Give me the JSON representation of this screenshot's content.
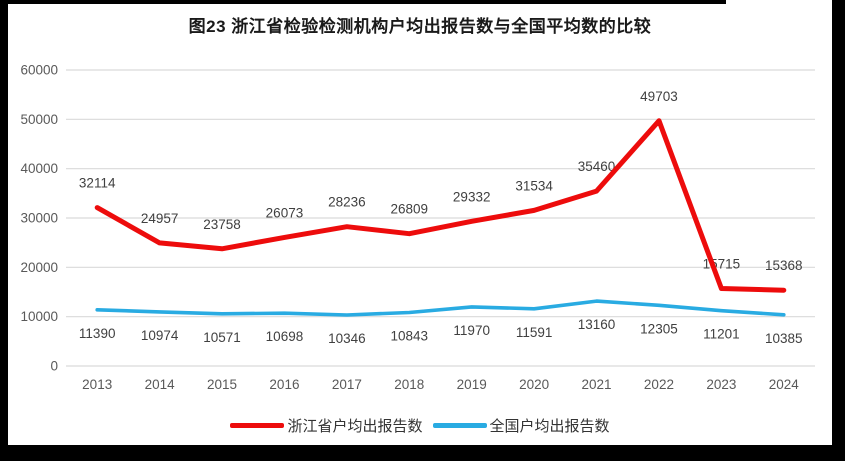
{
  "title": "图23  浙江省检验检测机构户均出报告数与全国平均数的比较",
  "colors": {
    "zhejiang_line": "#ed0c0c",
    "national_line": "#29abe2",
    "gridline": "#d9d9d9",
    "axis_label": "#595959",
    "data_label": "#404040",
    "title_text": "#1a1a1a",
    "frame": "#000000"
  },
  "chart_data": {
    "type": "line",
    "title": "图23  浙江省检验检测机构户均出报告数与全国平均数的比较",
    "categories": [
      "2013",
      "2014",
      "2015",
      "2016",
      "2017",
      "2018",
      "2019",
      "2020",
      "2021",
      "2022",
      "2023",
      "2024"
    ],
    "series": [
      {
        "name": "浙江省户均出报告数",
        "color": "#ed0c0c",
        "values": [
          32114,
          24957,
          23758,
          26073,
          28236,
          26809,
          29332,
          31534,
          35460,
          49703,
          15715,
          15368
        ],
        "label_position": "above"
      },
      {
        "name": "全国户均出报告数",
        "color": "#29abe2",
        "values": [
          11390,
          10974,
          10571,
          10698,
          10346,
          10843,
          11970,
          11591,
          13160,
          12305,
          11201,
          10385
        ],
        "label_position": "below"
      }
    ],
    "ylim": [
      0,
      60000
    ],
    "ytick_step": 10000,
    "yticks": [
      "0",
      "10000",
      "20000",
      "30000",
      "40000",
      "50000",
      "60000"
    ],
    "xlabel": "",
    "ylabel": "",
    "grid": true,
    "legend_position": "bottom",
    "data_labels": true
  }
}
